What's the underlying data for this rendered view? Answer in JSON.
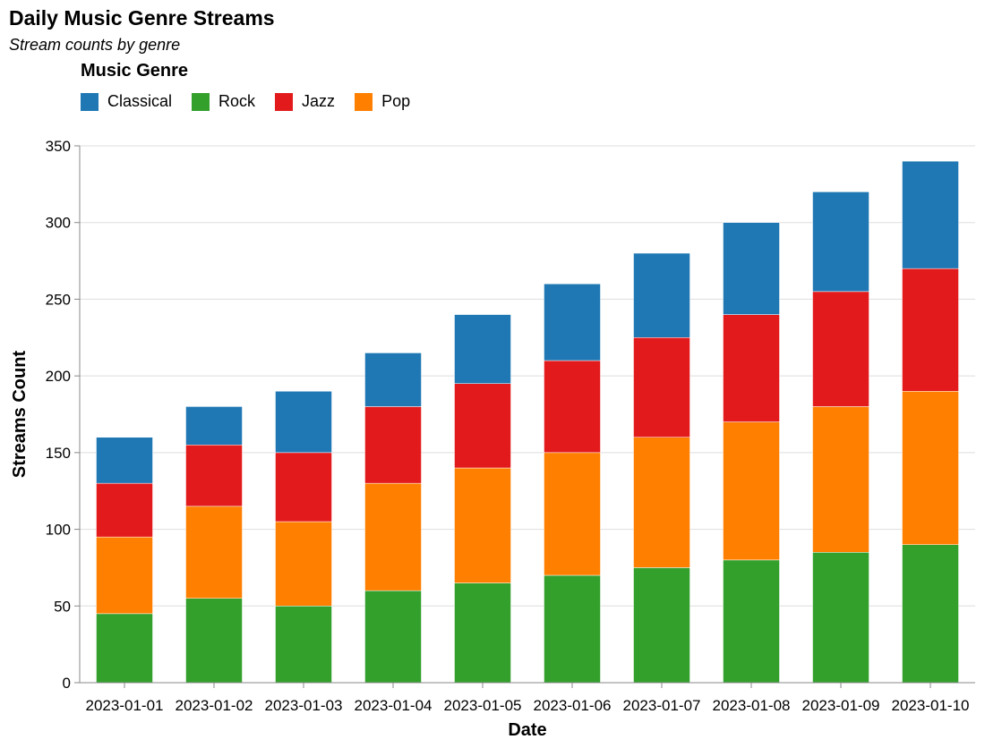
{
  "chart_data": {
    "type": "bar",
    "stacked": true,
    "title": "Daily Music Genre Streams",
    "subtitle": "Stream counts by genre",
    "xlabel": "Date",
    "ylabel": "Streams Count",
    "ylim": [
      0,
      350
    ],
    "yticks": [
      0,
      50,
      100,
      150,
      200,
      250,
      300,
      350
    ],
    "grid": true,
    "legend": {
      "title": "Music Genre",
      "placement": "top-left",
      "entries": [
        "Classical",
        "Rock",
        "Jazz",
        "Pop"
      ]
    },
    "categories": [
      "2023-01-01",
      "2023-01-02",
      "2023-01-03",
      "2023-01-04",
      "2023-01-05",
      "2023-01-06",
      "2023-01-07",
      "2023-01-08",
      "2023-01-09",
      "2023-01-10"
    ],
    "series": [
      {
        "name": "Rock",
        "color": "#33a02c",
        "values": [
          45,
          55,
          50,
          60,
          65,
          70,
          75,
          80,
          85,
          90
        ]
      },
      {
        "name": "Pop",
        "color": "#ff7f00",
        "values": [
          50,
          60,
          55,
          70,
          75,
          80,
          85,
          90,
          95,
          100
        ]
      },
      {
        "name": "Jazz",
        "color": "#e31a1c",
        "values": [
          35,
          40,
          45,
          50,
          55,
          60,
          65,
          70,
          75,
          80
        ]
      },
      {
        "name": "Classical",
        "color": "#1f78b4",
        "values": [
          30,
          25,
          40,
          35,
          45,
          50,
          55,
          60,
          65,
          70
        ]
      }
    ]
  }
}
